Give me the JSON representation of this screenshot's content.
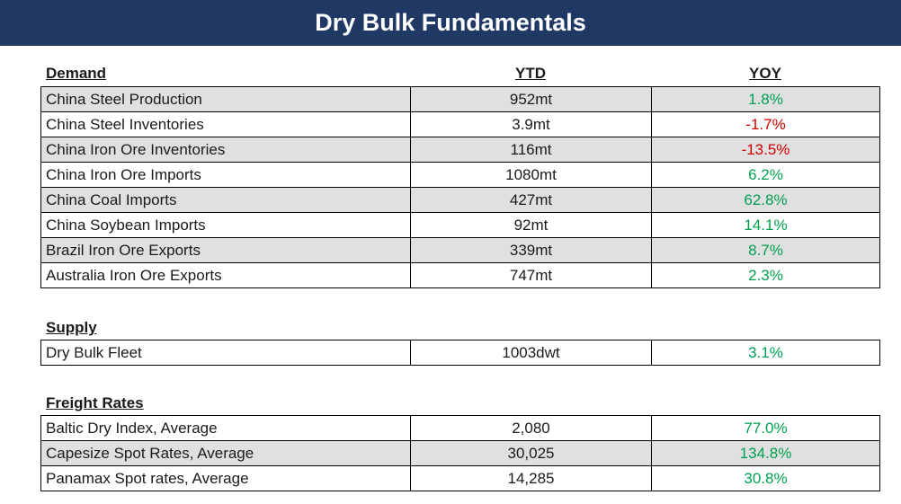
{
  "title": "Dry Bulk Fundamentals",
  "columns": {
    "ytd": "YTD",
    "yoy": "YOY"
  },
  "demand": {
    "heading": "Demand",
    "rows": [
      {
        "name": "China Steel Production",
        "ytd": "952mt",
        "yoy": "1.8%",
        "trend": "positive"
      },
      {
        "name": "China Steel Inventories",
        "ytd": "3.9mt",
        "yoy": "-1.7%",
        "trend": "negative"
      },
      {
        "name": "China Iron Ore Inventories",
        "ytd": "116mt",
        "yoy": "-13.5%",
        "trend": "negative"
      },
      {
        "name": "China Iron Ore Imports",
        "ytd": "1080mt",
        "yoy": "6.2%",
        "trend": "positive"
      },
      {
        "name": "China Coal Imports",
        "ytd": "427mt",
        "yoy": "62.8%",
        "trend": "positive"
      },
      {
        "name": "China Soybean Imports",
        "ytd": "92mt",
        "yoy": "14.1%",
        "trend": "positive"
      },
      {
        "name": "Brazil Iron Ore Exports",
        "ytd": "339mt",
        "yoy": "8.7%",
        "trend": "positive"
      },
      {
        "name": "Australia Iron Ore Exports",
        "ytd": "747mt",
        "yoy": "2.3%",
        "trend": "positive"
      }
    ]
  },
  "supply": {
    "heading": "Supply",
    "rows": [
      {
        "name": "Dry Bulk Fleet",
        "ytd": "1003dwt",
        "yoy": "3.1%",
        "trend": "positive"
      }
    ]
  },
  "freight": {
    "heading": "Freight Rates",
    "rows": [
      {
        "name": "Baltic Dry Index, Average",
        "ytd": "2,080",
        "yoy": "77.0%",
        "trend": "positive"
      },
      {
        "name": "Capesize Spot Rates, Average",
        "ytd": "30,025",
        "yoy": "134.8%",
        "trend": "positive"
      },
      {
        "name": "Panamax Spot rates, Average",
        "ytd": "14,285",
        "yoy": "30.8%",
        "trend": "positive"
      }
    ]
  },
  "colors": {
    "header_bg": "#1f3864",
    "positive": "#00a04f",
    "negative": "#d10000",
    "shaded_row": "#e0e0e0"
  }
}
